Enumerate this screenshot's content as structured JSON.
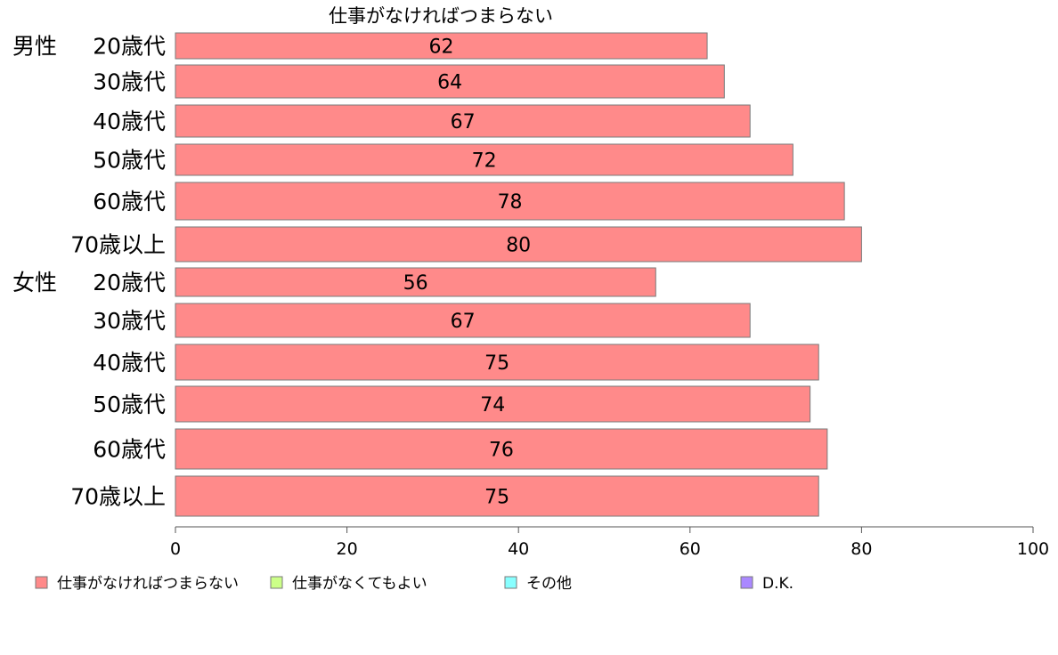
{
  "chart_data": {
    "type": "bar",
    "orientation": "horizontal",
    "stacked": true,
    "title": "仕事がなければつまらない",
    "categories": [
      {
        "group": "男性",
        "label": "20歳代"
      },
      {
        "group": "",
        "label": "30歳代"
      },
      {
        "group": "",
        "label": "40歳代"
      },
      {
        "group": "",
        "label": "50歳代"
      },
      {
        "group": "",
        "label": "60歳代"
      },
      {
        "group": "",
        "label": "70歳以上"
      },
      {
        "group": "女性",
        "label": "20歳代"
      },
      {
        "group": "",
        "label": "30歳代"
      },
      {
        "group": "",
        "label": "40歳代"
      },
      {
        "group": "",
        "label": "50歳代"
      },
      {
        "group": "",
        "label": "60歳代"
      },
      {
        "group": "",
        "label": "70歳以上"
      }
    ],
    "series": [
      {
        "name": "仕事がなければつまらない",
        "color": "#ff8a8a",
        "values": [
          62,
          64,
          67,
          72,
          78,
          80,
          56,
          67,
          75,
          74,
          76,
          75
        ],
        "value_labels": [
          "62",
          "64",
          "67",
          "72",
          "78",
          "80",
          "56",
          "67",
          "75",
          "74",
          "76",
          "75"
        ]
      }
    ],
    "legend": [
      {
        "name": "仕事がなければつまらない",
        "color": "#ff8a8a"
      },
      {
        "name": "仕事がなくてもよい",
        "color": "#ccff88"
      },
      {
        "name": "その他",
        "color": "#88ffff"
      },
      {
        "name": "D.K.",
        "color": "#aa88ff"
      }
    ],
    "xlim": [
      0,
      100
    ],
    "xticks": [
      0,
      20,
      40,
      60,
      80,
      100
    ],
    "xtick_labels": [
      "0",
      "20",
      "40",
      "60",
      "80",
      "100"
    ],
    "grid": false,
    "legend_position": "bottom"
  }
}
